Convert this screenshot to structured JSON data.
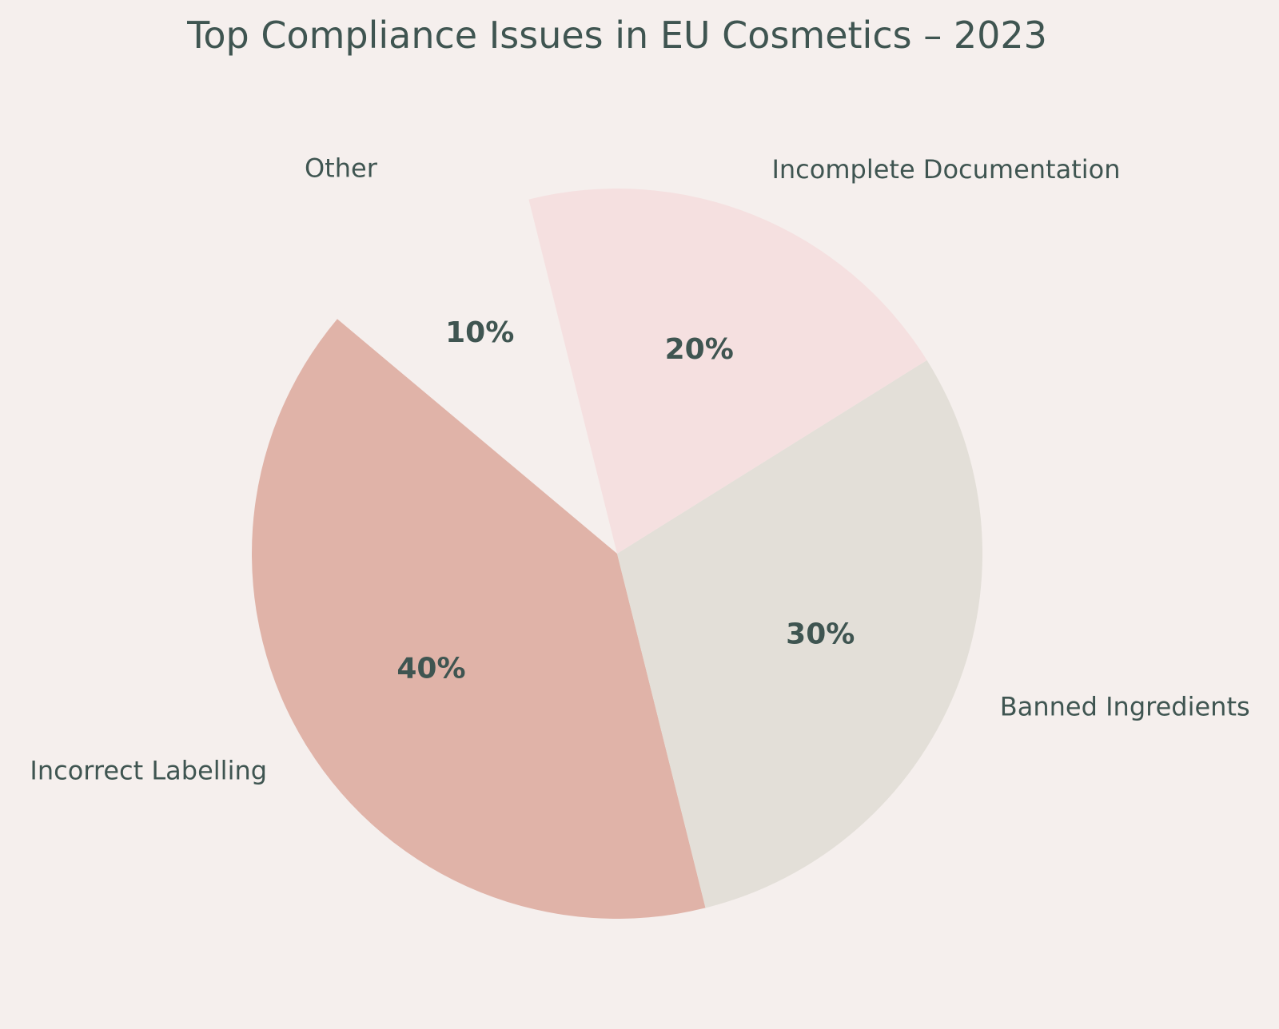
{
  "chart_data": {
    "type": "pie",
    "title": "Top Compliance Issues in EU Cosmetics – 2023",
    "labels": [
      "Incorrect Labelling",
      "Banned Ingredients",
      "Incomplete Documentation",
      "Other"
    ],
    "values": [
      40,
      30,
      20,
      10
    ],
    "percent_labels": [
      "40%",
      "30%",
      "20%",
      "10%"
    ],
    "colors": [
      "#e0b3a8",
      "#e3dfd8",
      "#f5e0e0",
      "#f5efed"
    ],
    "exploded": [
      "Other"
    ],
    "legend": "none",
    "start_angle_deg": 140,
    "direction": "counterclockwise"
  },
  "theme": {
    "background": "#f5efed",
    "text_color": "#3f5551"
  }
}
